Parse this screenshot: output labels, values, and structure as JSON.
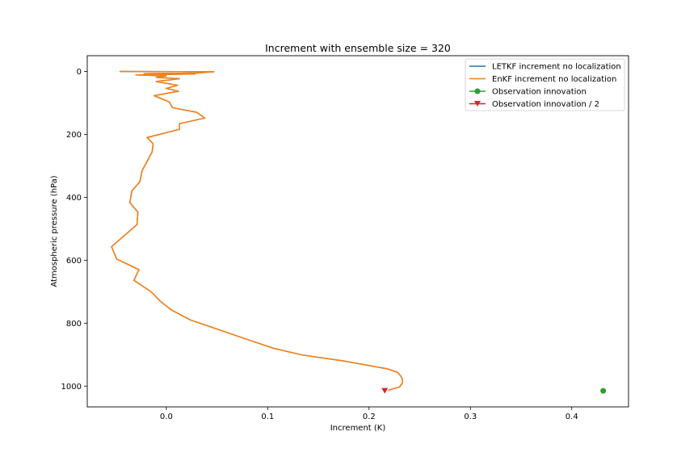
{
  "chart_data": {
    "type": "line",
    "title": "Increment with ensemble size = 320",
    "xlabel": "Increment (K)",
    "ylabel": "Atmospheric pressure (hPa)",
    "xlim": [
      -0.078,
      0.456
    ],
    "ylim": [
      1066,
      -50
    ],
    "y_inverted": true,
    "grid": false,
    "legend_position": "upper right",
    "x_ticks": [
      0.0,
      0.1,
      0.2,
      0.3,
      0.4
    ],
    "x_tick_labels": [
      "0.0",
      "0.1",
      "0.2",
      "0.3",
      "0.4"
    ],
    "y_ticks": [
      0,
      200,
      400,
      600,
      800,
      1000
    ],
    "y_tick_labels": [
      "0",
      "200",
      "400",
      "600",
      "800",
      "1000"
    ],
    "series": [
      {
        "name": "LETKF increment no localization",
        "color": "#1f77b4",
        "marker": "none",
        "points": [
          [
            -0.046,
            0
          ],
          [
            0.047,
            1
          ],
          [
            0.03,
            5
          ],
          [
            -0.022,
            7
          ],
          [
            0.028,
            8
          ],
          [
            -0.03,
            11
          ],
          [
            0.0,
            14
          ],
          [
            -0.01,
            19
          ],
          [
            0.013,
            23
          ],
          [
            -0.01,
            32
          ],
          [
            0.011,
            44
          ],
          [
            0.0,
            54
          ],
          [
            0.012,
            63
          ],
          [
            -0.012,
            77
          ],
          [
            0.003,
            97
          ],
          [
            0.006,
            115
          ],
          [
            0.03,
            130
          ],
          [
            0.038,
            148
          ],
          [
            0.013,
            166
          ],
          [
            0.013,
            184
          ],
          [
            -0.019,
            210
          ],
          [
            -0.013,
            230
          ],
          [
            -0.014,
            256
          ],
          [
            -0.024,
            316
          ],
          [
            -0.026,
            350
          ],
          [
            -0.034,
            380
          ],
          [
            -0.036,
            417
          ],
          [
            -0.028,
            447
          ],
          [
            -0.029,
            487
          ],
          [
            -0.054,
            557
          ],
          [
            -0.049,
            596
          ],
          [
            -0.027,
            630
          ],
          [
            -0.032,
            664
          ],
          [
            -0.015,
            700
          ],
          [
            -0.006,
            730
          ],
          [
            0.005,
            758
          ],
          [
            0.024,
            790
          ],
          [
            0.054,
            823
          ],
          [
            0.08,
            852
          ],
          [
            0.106,
            880
          ],
          [
            0.134,
            901
          ],
          [
            0.175,
            920
          ],
          [
            0.218,
            945
          ],
          [
            0.228,
            956
          ],
          [
            0.231,
            967
          ],
          [
            0.233,
            978
          ],
          [
            0.233,
            990
          ],
          [
            0.23,
            1003
          ],
          [
            0.222,
            1010
          ],
          [
            0.219,
            1013
          ]
        ]
      },
      {
        "name": "EnKF increment no localization",
        "color": "#ff7f0e",
        "marker": "none",
        "points": [
          [
            -0.046,
            0
          ],
          [
            0.047,
            1
          ],
          [
            0.03,
            5
          ],
          [
            -0.022,
            7
          ],
          [
            0.028,
            8
          ],
          [
            -0.03,
            11
          ],
          [
            0.0,
            14
          ],
          [
            -0.01,
            19
          ],
          [
            0.013,
            23
          ],
          [
            -0.01,
            32
          ],
          [
            0.011,
            44
          ],
          [
            0.0,
            54
          ],
          [
            0.012,
            63
          ],
          [
            -0.012,
            77
          ],
          [
            0.003,
            97
          ],
          [
            0.006,
            115
          ],
          [
            0.03,
            130
          ],
          [
            0.038,
            148
          ],
          [
            0.013,
            166
          ],
          [
            0.013,
            184
          ],
          [
            -0.019,
            210
          ],
          [
            -0.013,
            230
          ],
          [
            -0.014,
            256
          ],
          [
            -0.024,
            316
          ],
          [
            -0.026,
            350
          ],
          [
            -0.034,
            380
          ],
          [
            -0.036,
            417
          ],
          [
            -0.028,
            447
          ],
          [
            -0.029,
            487
          ],
          [
            -0.054,
            557
          ],
          [
            -0.049,
            596
          ],
          [
            -0.027,
            630
          ],
          [
            -0.032,
            664
          ],
          [
            -0.015,
            700
          ],
          [
            -0.006,
            730
          ],
          [
            0.005,
            758
          ],
          [
            0.024,
            790
          ],
          [
            0.054,
            823
          ],
          [
            0.08,
            852
          ],
          [
            0.106,
            880
          ],
          [
            0.134,
            901
          ],
          [
            0.175,
            920
          ],
          [
            0.218,
            945
          ],
          [
            0.228,
            956
          ],
          [
            0.231,
            967
          ],
          [
            0.233,
            978
          ],
          [
            0.233,
            990
          ],
          [
            0.23,
            1003
          ],
          [
            0.222,
            1010
          ],
          [
            0.219,
            1013
          ]
        ]
      },
      {
        "name": "Observation innovation",
        "color": "#2ca02c",
        "marker": "circle",
        "points": [
          [
            0.431,
            1015
          ]
        ]
      },
      {
        "name": "Observation innovation / 2",
        "color": "#d62728",
        "marker": "triangle-down",
        "points": [
          [
            0.2155,
            1015
          ]
        ]
      }
    ]
  }
}
